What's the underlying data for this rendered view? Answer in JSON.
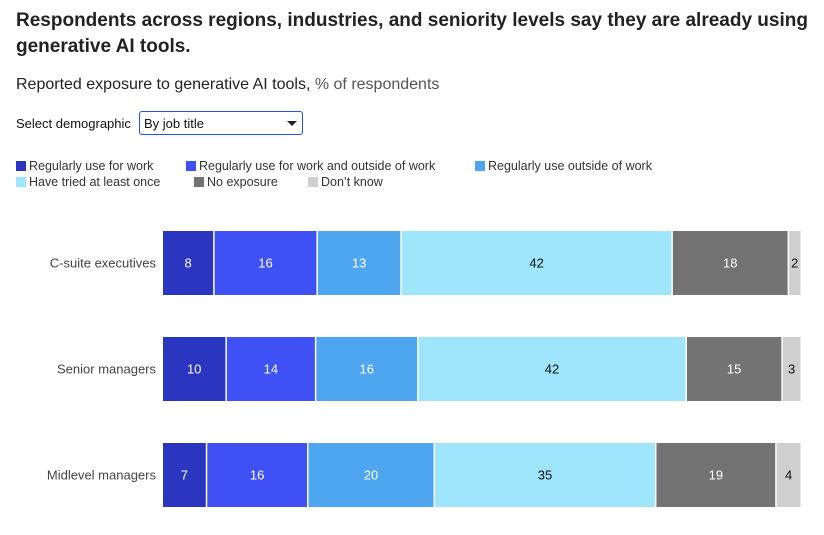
{
  "header": {
    "title": "Respondents across regions, industries, and seniority levels say they are already using generative AI tools.",
    "subtitle_main": "Reported exposure to generative AI tools,",
    "subtitle_unit": "% of respondents"
  },
  "filter": {
    "label": "Select demographic",
    "selected": "By job title"
  },
  "colors": {
    "regular_work": "#2a35c0",
    "regular_work_outside": "#3f51f5",
    "regular_outside": "#4fa6f0",
    "tried": "#9fe5fb",
    "no_exposure": "#737373",
    "dont_know": "#cfcfcf",
    "label_light": "#ffffff",
    "label_dark": "#111111"
  },
  "chart_data": {
    "type": "bar",
    "orientation": "horizontal",
    "stacked": true,
    "categories": [
      "C-suite executives",
      "Senior managers",
      "Midlevel managers"
    ],
    "series": [
      {
        "name": "Regularly use for work",
        "values": [
          8,
          10,
          7
        ],
        "color": "#2a35c0",
        "label_color": "#ffffff"
      },
      {
        "name": "Regularly use for work and outside of work",
        "values": [
          16,
          14,
          16
        ],
        "color": "#3f51f5",
        "label_color": "#ffffff"
      },
      {
        "name": "Regularly use outside of work",
        "values": [
          13,
          16,
          20
        ],
        "color": "#4fa6f0",
        "label_color": "#ffffff"
      },
      {
        "name": "Have tried at least once",
        "values": [
          42,
          42,
          35
        ],
        "color": "#9fe5fb",
        "label_color": "#111111"
      },
      {
        "name": "No exposure",
        "values": [
          18,
          15,
          19
        ],
        "color": "#737373",
        "label_color": "#ffffff"
      },
      {
        "name": "Don’t know",
        "values": [
          2,
          3,
          4
        ],
        "color": "#cfcfcf",
        "label_color": "#111111"
      }
    ],
    "xlim": [
      0,
      100
    ],
    "grid": false,
    "legend_position": "top"
  }
}
